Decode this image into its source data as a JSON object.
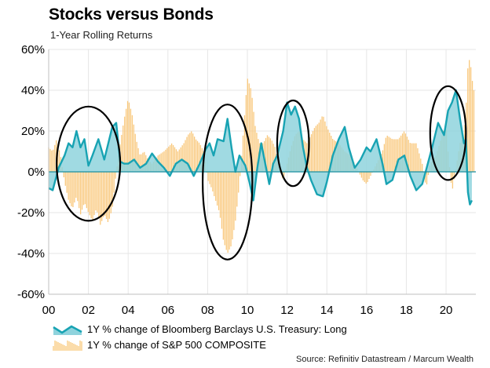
{
  "title": "Stocks versus Bonds",
  "subtitle": "1-Year Rolling Returns",
  "source": "Source: Refinitiv Datastream / Marcum Wealth",
  "colors": {
    "bond_line": "#18a3b3",
    "bond_fill": "#8fd3dd",
    "stock_bars": "#f9c87c",
    "zero_line": "#1a8fa0",
    "ellipse": "#000000",
    "grid": "#e6e6e6"
  },
  "chart_data": {
    "type": "area",
    "x_axis": {
      "range": [
        2000,
        2021.5
      ],
      "ticks": [
        2000,
        2002,
        2004,
        2006,
        2008,
        2010,
        2012,
        2014,
        2016,
        2018,
        2020
      ],
      "tick_labels": [
        "00",
        "02",
        "04",
        "06",
        "08",
        "10",
        "12",
        "14",
        "16",
        "18",
        "20"
      ]
    },
    "y_axis": {
      "range": [
        -60,
        60
      ],
      "ticks": [
        -60,
        -40,
        -20,
        0,
        20,
        40,
        60
      ],
      "tick_labels": [
        "-60%",
        "-40%",
        "-20%",
        "0%",
        "20%",
        "40%",
        "60%"
      ]
    },
    "grid": true,
    "legend_position": "bottom-left",
    "series": [
      {
        "name": "1Y % change of Bloomberg Barclays U.S. Treasury: Long",
        "type": "line-area",
        "points": [
          [
            2000.0,
            -8
          ],
          [
            2000.2,
            -9
          ],
          [
            2000.5,
            2
          ],
          [
            2000.8,
            8
          ],
          [
            2001.0,
            14
          ],
          [
            2001.2,
            12
          ],
          [
            2001.4,
            20
          ],
          [
            2001.6,
            12
          ],
          [
            2001.8,
            16
          ],
          [
            2002.0,
            3
          ],
          [
            2002.2,
            8
          ],
          [
            2002.5,
            16
          ],
          [
            2002.8,
            6
          ],
          [
            2003.0,
            14
          ],
          [
            2003.2,
            22
          ],
          [
            2003.4,
            24
          ],
          [
            2003.6,
            5
          ],
          [
            2003.8,
            4
          ],
          [
            2004.0,
            4
          ],
          [
            2004.3,
            6
          ],
          [
            2004.6,
            2
          ],
          [
            2004.9,
            4
          ],
          [
            2005.2,
            9
          ],
          [
            2005.5,
            5
          ],
          [
            2005.8,
            2
          ],
          [
            2006.1,
            -2
          ],
          [
            2006.4,
            4
          ],
          [
            2006.7,
            6
          ],
          [
            2007.0,
            4
          ],
          [
            2007.3,
            -2
          ],
          [
            2007.6,
            4
          ],
          [
            2007.9,
            11
          ],
          [
            2008.1,
            14
          ],
          [
            2008.3,
            8
          ],
          [
            2008.5,
            16
          ],
          [
            2008.8,
            15
          ],
          [
            2009.0,
            26
          ],
          [
            2009.2,
            12
          ],
          [
            2009.4,
            0
          ],
          [
            2009.6,
            8
          ],
          [
            2009.9,
            3
          ],
          [
            2010.1,
            -5
          ],
          [
            2010.3,
            -14
          ],
          [
            2010.5,
            2
          ],
          [
            2010.7,
            14
          ],
          [
            2010.9,
            4
          ],
          [
            2011.1,
            -6
          ],
          [
            2011.3,
            4
          ],
          [
            2011.5,
            8
          ],
          [
            2011.8,
            20
          ],
          [
            2012.0,
            34
          ],
          [
            2012.2,
            28
          ],
          [
            2012.4,
            32
          ],
          [
            2012.6,
            26
          ],
          [
            2012.8,
            12
          ],
          [
            2013.0,
            2
          ],
          [
            2013.2,
            -4
          ],
          [
            2013.5,
            -11
          ],
          [
            2013.8,
            -12
          ],
          [
            2014.0,
            -5
          ],
          [
            2014.3,
            8
          ],
          [
            2014.6,
            16
          ],
          [
            2014.9,
            22
          ],
          [
            2015.1,
            12
          ],
          [
            2015.4,
            2
          ],
          [
            2015.7,
            6
          ],
          [
            2016.0,
            12
          ],
          [
            2016.2,
            10
          ],
          [
            2016.5,
            16
          ],
          [
            2016.8,
            4
          ],
          [
            2017.0,
            -6
          ],
          [
            2017.3,
            -4
          ],
          [
            2017.6,
            6
          ],
          [
            2017.9,
            8
          ],
          [
            2018.2,
            -2
          ],
          [
            2018.5,
            -9
          ],
          [
            2018.8,
            -6
          ],
          [
            2019.0,
            1
          ],
          [
            2019.3,
            12
          ],
          [
            2019.6,
            24
          ],
          [
            2019.9,
            18
          ],
          [
            2020.1,
            30
          ],
          [
            2020.3,
            34
          ],
          [
            2020.5,
            40
          ],
          [
            2020.7,
            26
          ],
          [
            2020.9,
            14
          ],
          [
            2021.0,
            16
          ],
          [
            2021.1,
            -10
          ],
          [
            2021.2,
            -16
          ],
          [
            2021.3,
            -14
          ]
        ]
      },
      {
        "name": "1Y % change of S&P 500 COMPOSITE",
        "type": "bar",
        "points": [
          [
            2000.0,
            12
          ],
          [
            2000.2,
            10
          ],
          [
            2000.4,
            16
          ],
          [
            2000.6,
            8
          ],
          [
            2000.8,
            -5
          ],
          [
            2001.0,
            -14
          ],
          [
            2001.2,
            -18
          ],
          [
            2001.4,
            -12
          ],
          [
            2001.6,
            -21
          ],
          [
            2001.8,
            -15
          ],
          [
            2002.0,
            -20
          ],
          [
            2002.2,
            -24
          ],
          [
            2002.4,
            -18
          ],
          [
            2002.6,
            -26
          ],
          [
            2002.8,
            -21
          ],
          [
            2003.0,
            -25
          ],
          [
            2003.2,
            -18
          ],
          [
            2003.4,
            0
          ],
          [
            2003.6,
            14
          ],
          [
            2003.8,
            26
          ],
          [
            2004.0,
            36
          ],
          [
            2004.2,
            28
          ],
          [
            2004.4,
            16
          ],
          [
            2004.6,
            8
          ],
          [
            2004.8,
            10
          ],
          [
            2005.0,
            6
          ],
          [
            2005.2,
            4
          ],
          [
            2005.5,
            8
          ],
          [
            2005.8,
            10
          ],
          [
            2006.0,
            12
          ],
          [
            2006.2,
            14
          ],
          [
            2006.5,
            10
          ],
          [
            2006.8,
            14
          ],
          [
            2007.0,
            18
          ],
          [
            2007.2,
            20
          ],
          [
            2007.4,
            16
          ],
          [
            2007.6,
            14
          ],
          [
            2007.8,
            10
          ],
          [
            2008.0,
            -4
          ],
          [
            2008.2,
            -8
          ],
          [
            2008.4,
            -14
          ],
          [
            2008.6,
            -20
          ],
          [
            2008.8,
            -34
          ],
          [
            2009.0,
            -40
          ],
          [
            2009.2,
            -36
          ],
          [
            2009.4,
            -24
          ],
          [
            2009.6,
            -6
          ],
          [
            2009.8,
            20
          ],
          [
            2010.0,
            46
          ],
          [
            2010.2,
            40
          ],
          [
            2010.4,
            22
          ],
          [
            2010.6,
            14
          ],
          [
            2010.8,
            14
          ],
          [
            2011.0,
            18
          ],
          [
            2011.2,
            16
          ],
          [
            2011.4,
            12
          ],
          [
            2011.6,
            2
          ],
          [
            2011.8,
            -4
          ],
          [
            2012.0,
            4
          ],
          [
            2012.2,
            12
          ],
          [
            2012.4,
            18
          ],
          [
            2012.6,
            20
          ],
          [
            2012.8,
            16
          ],
          [
            2013.0,
            14
          ],
          [
            2013.2,
            18
          ],
          [
            2013.4,
            22
          ],
          [
            2013.6,
            24
          ],
          [
            2013.8,
            28
          ],
          [
            2014.0,
            22
          ],
          [
            2014.3,
            16
          ],
          [
            2014.6,
            14
          ],
          [
            2014.9,
            10
          ],
          [
            2015.2,
            8
          ],
          [
            2015.5,
            2
          ],
          [
            2015.8,
            -4
          ],
          [
            2016.0,
            -6
          ],
          [
            2016.2,
            -2
          ],
          [
            2016.5,
            4
          ],
          [
            2016.8,
            10
          ],
          [
            2017.0,
            18
          ],
          [
            2017.3,
            16
          ],
          [
            2017.6,
            16
          ],
          [
            2017.9,
            20
          ],
          [
            2018.2,
            14
          ],
          [
            2018.5,
            14
          ],
          [
            2018.8,
            4
          ],
          [
            2019.0,
            -8
          ],
          [
            2019.2,
            4
          ],
          [
            2019.5,
            8
          ],
          [
            2019.8,
            18
          ],
          [
            2020.0,
            24
          ],
          [
            2020.1,
            10
          ],
          [
            2020.3,
            -10
          ],
          [
            2020.5,
            2
          ],
          [
            2020.7,
            14
          ],
          [
            2020.9,
            18
          ],
          [
            2021.0,
            30
          ],
          [
            2021.1,
            52
          ],
          [
            2021.2,
            56
          ],
          [
            2021.3,
            46
          ],
          [
            2021.4,
            40
          ]
        ]
      }
    ],
    "annotations": [
      {
        "type": "ellipse",
        "x_center": 2002.0,
        "y_center": 4,
        "x_radius": 1.6,
        "y_radius": 28
      },
      {
        "type": "ellipse",
        "x_center": 2009.0,
        "y_center": -5,
        "x_radius": 1.25,
        "y_radius": 38
      },
      {
        "type": "ellipse",
        "x_center": 2012.3,
        "y_center": 14,
        "x_radius": 0.8,
        "y_radius": 21
      },
      {
        "type": "ellipse",
        "x_center": 2020.1,
        "y_center": 19,
        "x_radius": 0.9,
        "y_radius": 23
      }
    ]
  }
}
